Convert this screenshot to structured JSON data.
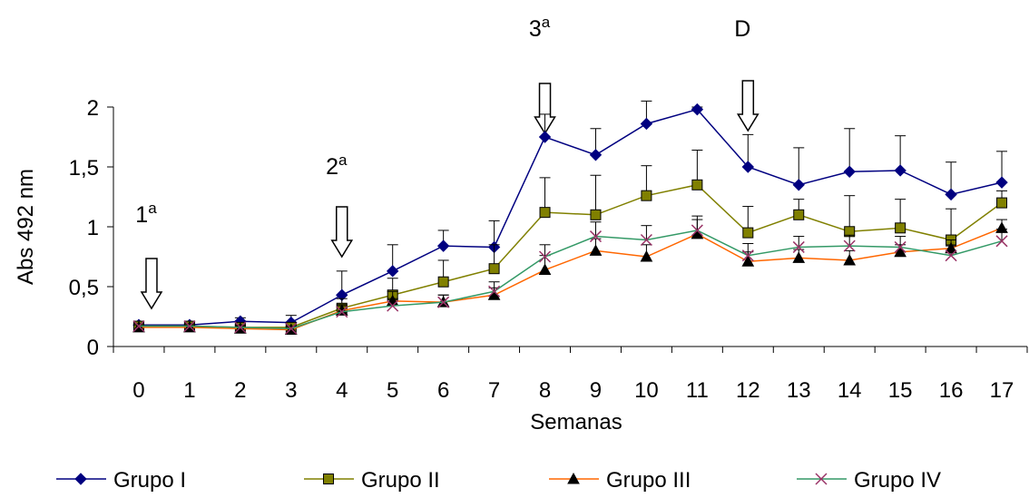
{
  "chart_data": {
    "type": "line",
    "xlabel": "Semanas",
    "ylabel": "Abs 492 nm",
    "ylim": [
      0,
      2
    ],
    "yticks": [
      "0",
      "0,5",
      "1",
      "1,5",
      "2"
    ],
    "categories": [
      "0",
      "1",
      "2",
      "3",
      "4",
      "5",
      "6",
      "7",
      "8",
      "9",
      "10",
      "11",
      "12",
      "13",
      "14",
      "15",
      "16",
      "17"
    ],
    "grid": false,
    "legend_position": "bottom",
    "series": [
      {
        "name": "Grupo I",
        "color": "#000080",
        "marker": "diamond",
        "values": [
          0.18,
          0.18,
          0.21,
          0.2,
          0.43,
          0.63,
          0.84,
          0.83,
          1.75,
          1.6,
          1.86,
          1.98,
          1.5,
          1.35,
          1.46,
          1.47,
          1.27,
          1.37
        ],
        "error": [
          0.02,
          0.02,
          0.03,
          0.06,
          0.2,
          0.22,
          0.13,
          0.22,
          0.19,
          0.22,
          0.19,
          0.02,
          0.27,
          0.31,
          0.36,
          0.29,
          0.27,
          0.26
        ]
      },
      {
        "name": "Grupo II",
        "color": "#808000",
        "marker": "square",
        "values": [
          0.17,
          0.17,
          0.16,
          0.16,
          0.32,
          0.43,
          0.54,
          0.65,
          1.12,
          1.1,
          1.26,
          1.35,
          0.95,
          1.1,
          0.96,
          0.99,
          0.89,
          1.2
        ],
        "error": [
          0.02,
          0.02,
          0.02,
          0.04,
          0.08,
          0.14,
          0.18,
          0.2,
          0.29,
          0.33,
          0.25,
          0.29,
          0.22,
          0.13,
          0.3,
          0.24,
          0.26,
          0.1
        ]
      },
      {
        "name": "Grupo III",
        "color": "#ff6600",
        "marker": "triangle",
        "values": [
          0.16,
          0.16,
          0.15,
          0.14,
          0.3,
          0.38,
          0.37,
          0.43,
          0.64,
          0.8,
          0.75,
          0.94,
          0.71,
          0.74,
          0.72,
          0.79,
          0.82,
          0.99
        ],
        "error": [
          0.02,
          0.02,
          0.02,
          0.02,
          0.05,
          0.08,
          0.06,
          0.06,
          0.12,
          0.1,
          0.1,
          0.12,
          0.08,
          0.07,
          0.08,
          0.06,
          0.07,
          0.07
        ]
      },
      {
        "name": "Grupo IV",
        "color": "#339966",
        "marker": "x",
        "values": [
          0.17,
          0.17,
          0.16,
          0.15,
          0.29,
          0.34,
          0.37,
          0.46,
          0.75,
          0.92,
          0.89,
          0.97,
          0.76,
          0.83,
          0.84,
          0.83,
          0.76,
          0.88
        ],
        "error": [
          0.02,
          0.02,
          0.02,
          0.02,
          0.05,
          0.06,
          0.06,
          0.08,
          0.1,
          0.12,
          0.12,
          0.12,
          0.1,
          0.09,
          0.09,
          0.09,
          0.08,
          0.1
        ]
      }
    ],
    "annotations": [
      {
        "label": "1",
        "superscript": "a",
        "x": 0
      },
      {
        "label": "2",
        "superscript": "a",
        "x": 4
      },
      {
        "label": "3",
        "superscript": "a",
        "x": 8
      },
      {
        "label": "D",
        "superscript": "",
        "x": 12
      }
    ]
  }
}
